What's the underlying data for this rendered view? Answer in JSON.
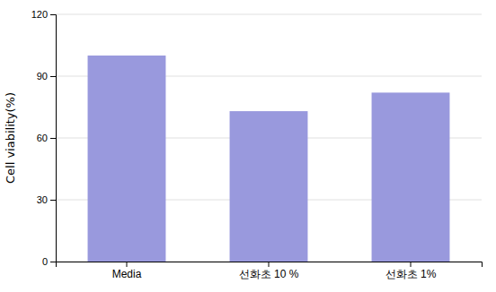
{
  "chart_data": {
    "type": "bar",
    "categories": [
      "Media",
      "선화초 10 %",
      "선화초 1%"
    ],
    "values": [
      100,
      73,
      82
    ],
    "color": "#9999dd",
    "ylabel": "Cell viability(%)",
    "ylim": [
      0,
      120
    ],
    "yticks": [
      0,
      30,
      60,
      90,
      120
    ],
    "grid": true
  }
}
